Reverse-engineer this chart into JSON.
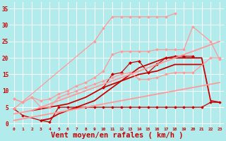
{
  "background_color": "#b2ebeb",
  "grid_color": "#c0e8e8",
  "xlabel": "Vent moyen/en rafales ( km/h )",
  "xlabel_color": "#cc0000",
  "xlabel_fontsize": 7.5,
  "xtick_color": "#cc0000",
  "ytick_color": "#cc0000",
  "xlim": [
    -0.5,
    23.5
  ],
  "ylim": [
    -1,
    37
  ],
  "yticks": [
    0,
    5,
    10,
    15,
    20,
    25,
    30,
    35
  ],
  "xticks": [
    0,
    1,
    2,
    3,
    4,
    5,
    6,
    7,
    8,
    9,
    10,
    11,
    12,
    13,
    14,
    15,
    16,
    17,
    18,
    19,
    20,
    21,
    22,
    23
  ],
  "series": [
    {
      "x": [
        0,
        1,
        3,
        4,
        5,
        6,
        7,
        8,
        9,
        10,
        11,
        12,
        13,
        14,
        15,
        16,
        17,
        18,
        19,
        20,
        21,
        22,
        23
      ],
      "y": [
        4.5,
        2.5,
        1,
        0.5,
        5,
        5,
        5,
        5,
        5,
        5,
        5,
        5,
        5,
        5,
        5,
        5,
        5,
        5,
        5,
        5,
        5,
        6.5,
        6.5
      ],
      "color": "#cc0000",
      "lw": 0.9,
      "marker": "D",
      "markersize": 1.8,
      "linestyle": "-"
    },
    {
      "x": [
        2,
        3,
        4,
        5,
        6,
        7,
        8,
        9,
        10,
        11,
        12,
        13,
        14,
        15,
        16,
        17,
        18,
        19,
        20,
        21
      ],
      "y": [
        4,
        4.5,
        5,
        5.5,
        6,
        7,
        8,
        9.5,
        11,
        12,
        13,
        14,
        15,
        15.5,
        16,
        17,
        18,
        18,
        18,
        18
      ],
      "color": "#cc0000",
      "lw": 1.3,
      "marker": null,
      "markersize": 0,
      "linestyle": "-"
    },
    {
      "x": [
        3,
        4,
        5,
        6,
        7,
        8,
        9,
        10,
        11,
        12,
        13,
        14,
        15,
        16,
        17,
        18,
        19,
        20,
        21,
        22,
        23
      ],
      "y": [
        1,
        1.5,
        3,
        4,
        5,
        6,
        7,
        9,
        11,
        13,
        15,
        17,
        18,
        19,
        20,
        20,
        20,
        20,
        20,
        7,
        6.5
      ],
      "color": "#cc0000",
      "lw": 1.3,
      "marker": null,
      "markersize": 0,
      "linestyle": "-"
    },
    {
      "x": [
        10,
        11,
        12,
        13,
        14,
        15,
        16,
        17,
        18,
        19,
        20
      ],
      "y": [
        11,
        15,
        15.5,
        18.5,
        19,
        15.5,
        18,
        20,
        20.5,
        20.5,
        20.5
      ],
      "color": "#cc0000",
      "lw": 0.9,
      "marker": "D",
      "markersize": 2.0,
      "linestyle": "-"
    },
    {
      "x": [
        0,
        9,
        10,
        11,
        12,
        13,
        14,
        15,
        16,
        17,
        18
      ],
      "y": [
        4.5,
        25,
        29,
        32.5,
        32.5,
        32.5,
        32.5,
        32.5,
        32.5,
        32.5,
        33.5
      ],
      "color": "#ff9999",
      "lw": 0.9,
      "marker": "D",
      "markersize": 1.8,
      "linestyle": "-"
    },
    {
      "x": [
        0,
        1,
        2,
        3,
        4,
        5,
        6,
        7,
        8,
        9,
        10,
        11,
        12,
        13,
        14,
        15,
        16,
        17,
        18,
        19,
        20,
        22,
        23
      ],
      "y": [
        7.5,
        6.5,
        8,
        5,
        5,
        8,
        9,
        10,
        11,
        12,
        13,
        14,
        15,
        15.5,
        13.5,
        13.5,
        14,
        15,
        15.5,
        15.5,
        15.5,
        20,
        20
      ],
      "color": "#ff9999",
      "lw": 0.9,
      "marker": "D",
      "markersize": 1.8,
      "linestyle": "-"
    },
    {
      "x": [
        0,
        1,
        2,
        3,
        4,
        5,
        6,
        7,
        8,
        9,
        10,
        11,
        12,
        13,
        14,
        15,
        16,
        17,
        18,
        19,
        20,
        22,
        23
      ],
      "y": [
        7.5,
        6.5,
        8,
        7,
        7.5,
        9,
        10,
        11.5,
        12.5,
        14,
        16,
        21,
        22,
        22,
        22,
        22,
        22.5,
        22.5,
        22.5,
        22.5,
        29.5,
        25,
        19.5
      ],
      "color": "#ff9999",
      "lw": 0.9,
      "marker": "D",
      "markersize": 1.8,
      "linestyle": "-"
    },
    {
      "x": [
        0,
        1,
        2,
        3,
        4,
        5,
        6,
        7,
        8,
        9,
        10,
        11,
        12,
        13,
        14,
        15,
        16,
        17,
        18,
        19,
        20,
        22,
        23
      ],
      "y": [
        3,
        3.5,
        4,
        5,
        6,
        7,
        8,
        9,
        10,
        11,
        12,
        13,
        14,
        15,
        16,
        17,
        18,
        19,
        20,
        21,
        22,
        24,
        25
      ],
      "color": "#ff9999",
      "lw": 1.3,
      "marker": null,
      "markersize": 0,
      "linestyle": "-"
    },
    {
      "x": [
        0,
        1,
        2,
        3,
        4,
        5,
        6,
        7,
        8,
        9,
        10,
        11,
        12,
        13,
        14,
        15,
        16,
        17,
        18,
        19,
        20,
        21,
        22,
        23
      ],
      "y": [
        1,
        1.5,
        2,
        2.5,
        3,
        3.5,
        4,
        4.5,
        5,
        5.5,
        6,
        6.5,
        7,
        7.5,
        8,
        8.5,
        9,
        9.5,
        10,
        10.5,
        11,
        11.5,
        12,
        12.5
      ],
      "color": "#ff9999",
      "lw": 1.3,
      "marker": null,
      "markersize": 0,
      "linestyle": "-"
    }
  ]
}
